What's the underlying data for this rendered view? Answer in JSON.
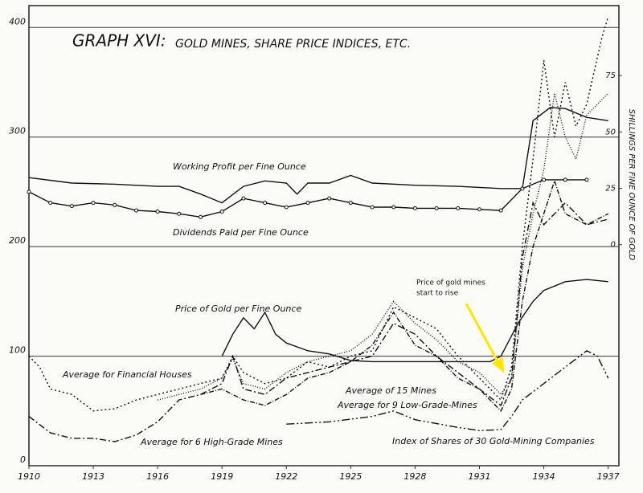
{
  "chart_data": {
    "type": "line",
    "title": "GRAPH XVI:",
    "subtitle": "GOLD MINES, SHARE PRICE INDICES, ETC.",
    "y2_label": "SHILLINGS PER FINE OUNCE OF GOLD",
    "annotation": [
      "Price of gold mines",
      "start to rise"
    ],
    "annotation_color": "#ffe600",
    "xlim": [
      1910,
      1937.5
    ],
    "xticks": [
      1910,
      1913,
      1916,
      1919,
      1922,
      1925,
      1928,
      1931,
      1934,
      1937
    ],
    "ylim": [
      0,
      420
    ],
    "yticks": [
      0,
      100,
      200,
      300,
      400
    ],
    "y2lim": [
      -98,
      106
    ],
    "y2ticks": [
      0,
      25,
      50,
      75
    ],
    "grid": true,
    "series": [
      {
        "name": "Working Profit per Fine Ounce",
        "color": "#111111",
        "dash": "none",
        "markers": false,
        "x": [
          1910,
          1912,
          1914,
          1916,
          1917,
          1918,
          1919,
          1920,
          1921,
          1922,
          1922.5,
          1923,
          1924,
          1925,
          1926,
          1928,
          1930,
          1932,
          1933,
          1933.5,
          1934.3,
          1935,
          1936,
          1937
        ],
        "values": [
          263,
          258,
          257,
          255,
          255,
          248,
          240,
          255,
          260,
          258,
          248,
          258,
          258,
          265,
          258,
          256,
          255,
          253,
          253,
          315,
          327,
          326,
          318,
          315
        ]
      },
      {
        "name": "Dividends Paid per Fine Ounce",
        "color": "#111111",
        "dash": "none",
        "markers": true,
        "x": [
          1910,
          1911,
          1912,
          1913,
          1914,
          1915,
          1916,
          1917,
          1918,
          1919,
          1920,
          1921,
          1922,
          1923,
          1924,
          1925,
          1926,
          1927,
          1928,
          1929,
          1930,
          1931,
          1932,
          1933,
          1934,
          1935,
          1936
        ],
        "values": [
          250,
          240,
          237,
          240,
          238,
          233,
          232,
          230,
          227,
          232,
          244,
          240,
          236,
          240,
          244,
          240,
          236,
          236,
          235,
          235,
          235,
          234,
          233,
          253,
          261,
          261,
          261
        ]
      },
      {
        "name": "Price of Gold per Fine Ounce",
        "color": "#111111",
        "dash": "none",
        "markers": false,
        "x": [
          1919,
          1919.5,
          1920,
          1920.5,
          1921,
          1921.5,
          1922,
          1923,
          1924,
          1925,
          1926,
          1928,
          1930,
          1931.5,
          1932,
          1932.8,
          1933.5,
          1934,
          1935,
          1936,
          1937
        ],
        "values": [
          100,
          120,
          135,
          125,
          140,
          120,
          112,
          105,
          102,
          96,
          95,
          95,
          95,
          95,
          100,
          130,
          150,
          160,
          168,
          170,
          168
        ]
      },
      {
        "name": "Average for Financial Houses",
        "color": "#111111",
        "dash": "2 3",
        "markers": false,
        "x": [
          1910,
          1910.5,
          1911,
          1912,
          1913,
          1914,
          1915,
          1916,
          1917,
          1918,
          1919,
          1919.5,
          1920,
          1921,
          1922,
          1923,
          1924,
          1925,
          1926,
          1927,
          1928,
          1929,
          1930,
          1931,
          1932,
          1932.5,
          1933,
          1933.5,
          1934,
          1934.5,
          1935,
          1935.5,
          1936,
          1936.7,
          1937
        ],
        "values": [
          100,
          90,
          70,
          65,
          50,
          52,
          60,
          65,
          70,
          75,
          80,
          100,
          85,
          75,
          80,
          95,
          90,
          100,
          105,
          145,
          135,
          125,
          100,
          80,
          60,
          90,
          200,
          280,
          370,
          300,
          350,
          310,
          330,
          390,
          410
        ]
      },
      {
        "name": "Average of 15 Mines",
        "color": "#111111",
        "dash": "1 2",
        "markers": false,
        "x": [
          1916,
          1917,
          1918,
          1919,
          1919.5,
          1920,
          1921,
          1922,
          1923,
          1924,
          1925,
          1926,
          1927,
          1928,
          1929,
          1930,
          1931,
          1932,
          1932.5,
          1933,
          1933.5,
          1934,
          1934.5,
          1935,
          1935.5,
          1936,
          1936.5,
          1937
        ],
        "values": [
          60,
          65,
          70,
          80,
          98,
          75,
          70,
          85,
          95,
          100,
          105,
          120,
          150,
          130,
          115,
          95,
          85,
          65,
          80,
          180,
          230,
          270,
          340,
          300,
          280,
          320,
          330,
          340
        ]
      },
      {
        "name": "Average for 9 Low-Grade-Mines",
        "color": "#111111",
        "dash": "6 2 1 2",
        "markers": false,
        "x": [
          1918,
          1919,
          1920,
          1921,
          1922,
          1923,
          1924,
          1925,
          1926,
          1927,
          1928,
          1929,
          1930,
          1931,
          1932,
          1932.5,
          1933,
          1933.5,
          1934,
          1934.5,
          1935,
          1936,
          1937
        ],
        "values": [
          65,
          70,
          60,
          55,
          65,
          80,
          85,
          95,
          110,
          140,
          110,
          100,
          80,
          70,
          50,
          70,
          150,
          200,
          230,
          260,
          230,
          220,
          230
        ]
      },
      {
        "name": "Average for 6 High-Grade Mines",
        "color": "#111111",
        "dash": "8 3 2 3",
        "markers": false,
        "x": [
          1910,
          1911,
          1912,
          1913,
          1914,
          1915,
          1916,
          1917,
          1918,
          1919,
          1919.5,
          1920,
          1921,
          1922,
          1923,
          1924,
          1925,
          1926,
          1927,
          1928,
          1929,
          1930,
          1931,
          1932,
          1932.5,
          1933,
          1933.5,
          1934,
          1935,
          1936,
          1937
        ],
        "values": [
          45,
          30,
          25,
          25,
          22,
          28,
          40,
          60,
          65,
          75,
          100,
          70,
          65,
          80,
          85,
          90,
          95,
          100,
          130,
          120,
          100,
          85,
          70,
          55,
          80,
          190,
          240,
          220,
          240,
          220,
          225
        ]
      },
      {
        "name": "Index of Shares of 30 Gold-Mining Companies",
        "color": "#111111",
        "dash": "10 3 2 3 2 3",
        "markers": false,
        "x": [
          1922,
          1924,
          1926,
          1927,
          1928,
          1930,
          1931,
          1932,
          1932.5,
          1933,
          1934,
          1935,
          1936,
          1936.5,
          1937
        ],
        "values": [
          38,
          40,
          45,
          50,
          42,
          35,
          32,
          33,
          45,
          60,
          75,
          90,
          105,
          100,
          80
        ]
      }
    ]
  }
}
